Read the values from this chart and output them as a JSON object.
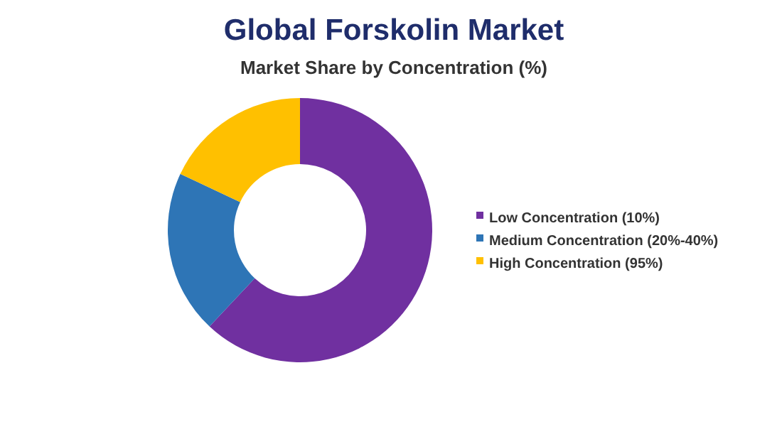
{
  "chart_data": {
    "type": "donut",
    "title": "Global Forskolin Market",
    "subtitle": "Market Share by Concentration (%)",
    "categories": [
      "Low Concentration (10%)",
      "Medium Concentration (20%-40%)",
      "High Concentration (95%)"
    ],
    "values": [
      62,
      20,
      18
    ],
    "colors": [
      "#7030a0",
      "#2e75b6",
      "#ffc000"
    ],
    "legend": "right"
  }
}
